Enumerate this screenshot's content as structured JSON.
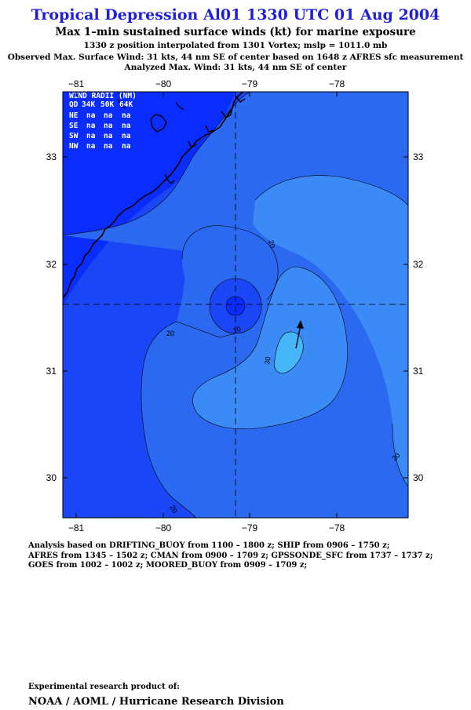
{
  "header": {
    "title": "Tropical Depression Al01 1330 UTC 01 Aug 2004",
    "subtitle": "Max 1–min sustained surface winds (kt) for marine exposure",
    "line1": "1330 z position interpolated from 1301 Vortex; mslp = 1011.0 mb",
    "line2": "Observed Max. Surface Wind: 31 kts, 44 nm SE of center based on 1648 z AFRES sfc measurement",
    "line3": "Analyzed Max. Wind: 31 kts, 44 nm SE of center"
  },
  "map": {
    "lon_ticks": [
      "−81",
      "−80",
      "−79",
      "−78"
    ],
    "lat_ticks": [
      "33",
      "32",
      "31",
      "30"
    ],
    "lon_range": [
      -81.2,
      -77.2
    ],
    "lat_range": [
      29.65,
      33.55
    ],
    "center": {
      "lon": -79.1,
      "lat": 31.62
    },
    "contour_labels": [
      "20",
      "20",
      "10",
      "30",
      "20",
      "20"
    ],
    "colors": {
      "ocean": "#0a2cff",
      "band_0_10": "#1a46f5",
      "band_10_20": "#2a69f0",
      "band_20_30": "#3b8af6",
      "band_30_plus": "#47b6f9",
      "land": "#000000"
    },
    "wind_radii": {
      "title": "WIND RADII (NM)",
      "header": [
        "QD",
        "34K",
        "50K",
        "64K"
      ],
      "rows": [
        {
          "qd": "NE",
          "v34": "na",
          "v50": "na",
          "v64": "na"
        },
        {
          "qd": "SE",
          "v34": "na",
          "v50": "na",
          "v64": "na"
        },
        {
          "qd": "SW",
          "v34": "na",
          "v50": "na",
          "v64": "na"
        },
        {
          "qd": "NW",
          "v34": "na",
          "v50": "na",
          "v64": "na"
        }
      ]
    }
  },
  "notes": {
    "line1": "Analysis based on  DRIFTING_BUOY from 1100 – 1800 z;  SHIP from 0906 – 1750 z;",
    "line2": "AFRES from 1345 – 1502 z;  CMAN from 0900 – 1709 z;  GPSSONDE_SFC from 1737 – 1737 z;",
    "line3": "GOES from 1002 – 1002 z;  MOORED_BUOY from 0909 – 1709 z;"
  },
  "footer": {
    "credit_line1": "Experimental research product of:",
    "credit_line2": "NOAA / AOML / Hurricane Research Division"
  }
}
